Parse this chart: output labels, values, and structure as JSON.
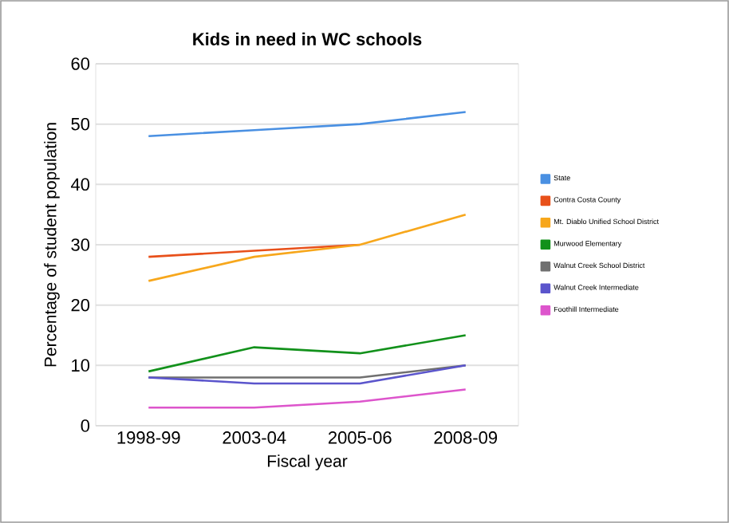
{
  "chart_data": {
    "type": "line",
    "title": "Kids in need in WC schools",
    "xlabel": "Fiscal year",
    "ylabel": "Percentage of student population",
    "categories": [
      "1998-99",
      "2003-04",
      "2005-06",
      "2008-09"
    ],
    "series": [
      {
        "name": "State",
        "color": "#4a90e2",
        "values": [
          48,
          49,
          50,
          52
        ]
      },
      {
        "name": "Contra Costa County",
        "color": "#e8501a",
        "values": [
          28,
          29,
          30,
          null
        ]
      },
      {
        "name": "Mt. Diablo Unified School District",
        "color": "#f7a71c",
        "values": [
          24,
          28,
          30,
          35
        ]
      },
      {
        "name": "Murwood Elementary",
        "color": "#12911b",
        "values": [
          9,
          13,
          12,
          15
        ]
      },
      {
        "name": "Walnut Creek School District",
        "color": "#707070",
        "values": [
          8,
          8,
          8,
          10
        ]
      },
      {
        "name": "Walnut Creek Intermediate",
        "color": "#5b55cc",
        "values": [
          8,
          7,
          7,
          10
        ]
      },
      {
        "name": "Foothill Intermediate",
        "color": "#dd55cc",
        "values": [
          3,
          3,
          4,
          6
        ]
      }
    ],
    "ylim": [
      0,
      60
    ],
    "yticks": [
      0,
      10,
      20,
      30,
      40,
      50,
      60
    ],
    "grid": "y",
    "legend": "right",
    "marker": "none",
    "line_style": "solid"
  }
}
